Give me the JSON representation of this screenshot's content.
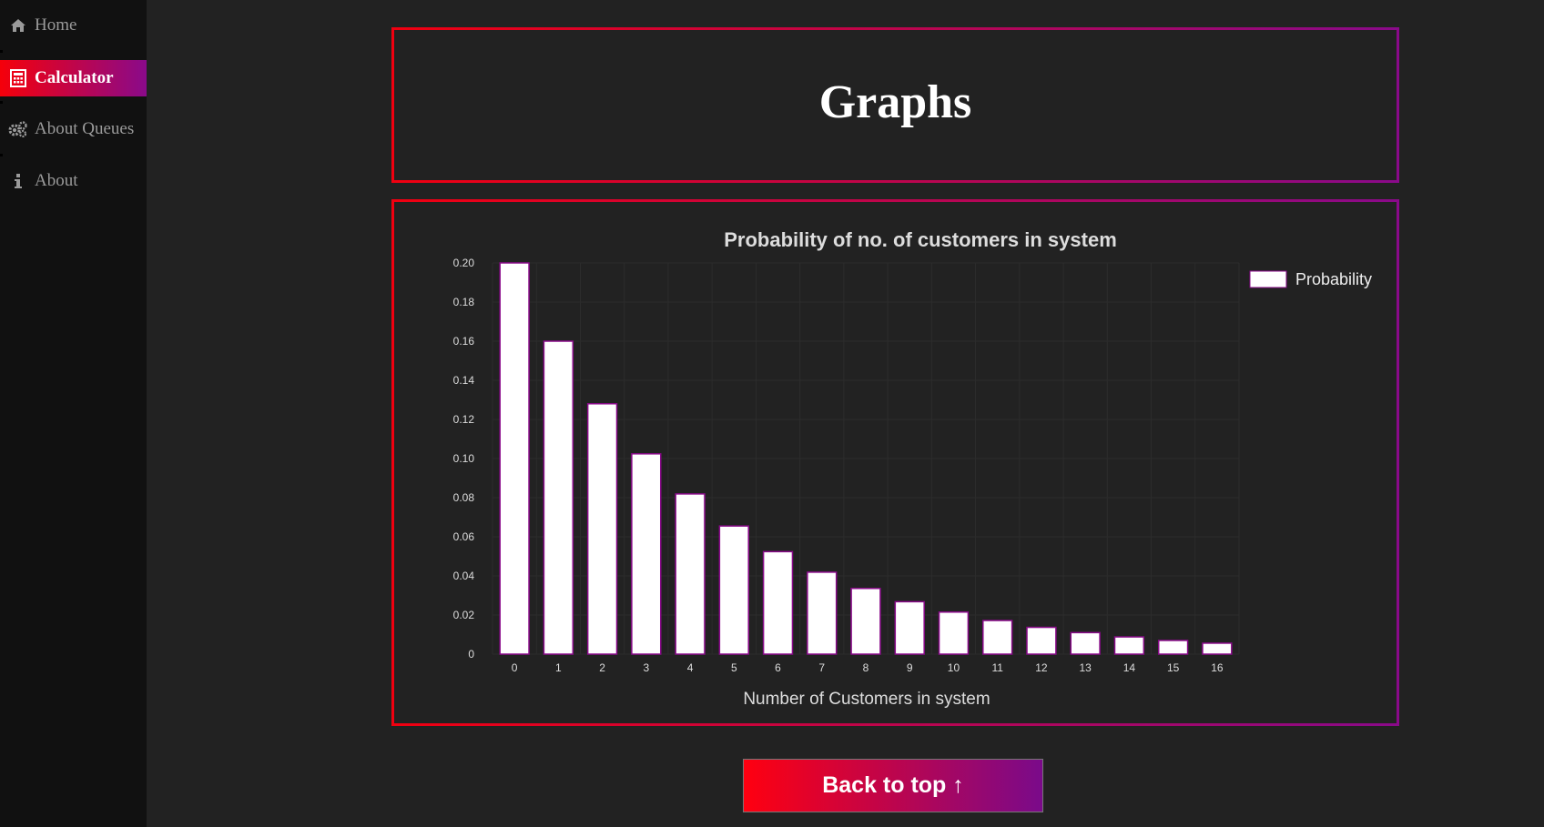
{
  "sidebar": {
    "items": [
      {
        "label": "Home",
        "icon": "home-icon",
        "active": false
      },
      {
        "label": "Calculator",
        "icon": "calculator-icon",
        "active": true
      },
      {
        "label": "About Queues",
        "icon": "gears-icon",
        "active": false
      },
      {
        "label": "About",
        "icon": "info-icon",
        "active": false
      }
    ]
  },
  "header": {
    "title": "Graphs"
  },
  "chart_data": {
    "type": "bar",
    "title": "Probability of no. of customers in system",
    "xlabel": "Number of Customers in system",
    "ylabel": "",
    "categories": [
      "0",
      "1",
      "2",
      "3",
      "4",
      "5",
      "6",
      "7",
      "8",
      "9",
      "10",
      "11",
      "12",
      "13",
      "14",
      "15",
      "16"
    ],
    "series": [
      {
        "name": "Probability",
        "values": [
          0.2,
          0.16,
          0.128,
          0.1024,
          0.0819,
          0.0655,
          0.0524,
          0.0419,
          0.0336,
          0.0268,
          0.0215,
          0.0172,
          0.0137,
          0.011,
          0.0088,
          0.007,
          0.0056
        ]
      }
    ],
    "ylim": [
      0,
      0.2
    ],
    "yticks": [
      "0",
      "0.02",
      "0.04",
      "0.06",
      "0.08",
      "0.10",
      "0.12",
      "0.14",
      "0.16",
      "0.18",
      "0.20"
    ],
    "legend": "top-right",
    "grid": true,
    "colors": {
      "bar_fill": "#ffffff",
      "bar_border": "#8a0a8a"
    }
  },
  "footer": {
    "back_to_top_label": "Back to top ↑"
  }
}
